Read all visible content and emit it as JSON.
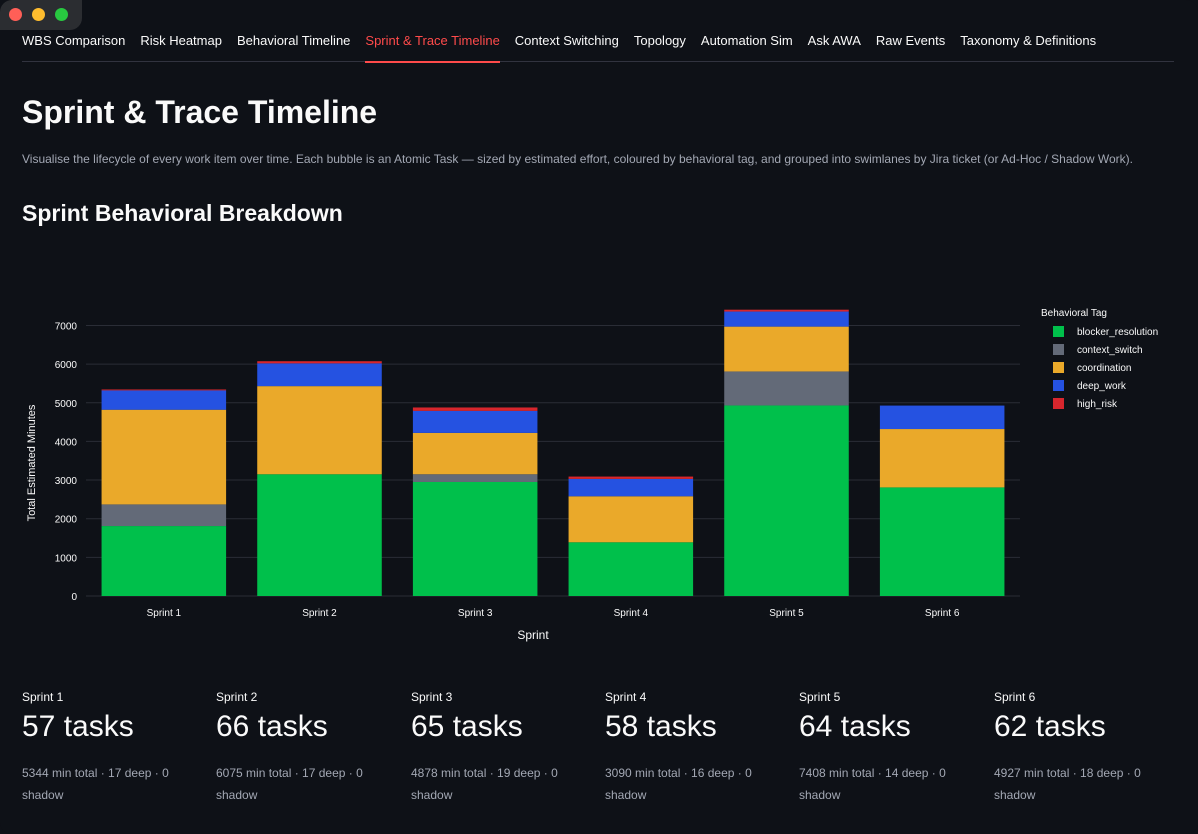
{
  "window": {
    "controls": [
      "close",
      "minimize",
      "maximize"
    ]
  },
  "tabs": [
    {
      "label": "WBS Comparison",
      "active": false
    },
    {
      "label": "Risk Heatmap",
      "active": false
    },
    {
      "label": "Behavioral Timeline",
      "active": false
    },
    {
      "label": "Sprint & Trace Timeline",
      "active": true
    },
    {
      "label": "Context Switching",
      "active": false
    },
    {
      "label": "Topology",
      "active": false
    },
    {
      "label": "Automation Sim",
      "active": false
    },
    {
      "label": "Ask AWA",
      "active": false
    },
    {
      "label": "Raw Events",
      "active": false
    },
    {
      "label": "Taxonomy & Definitions",
      "active": false
    }
  ],
  "page": {
    "title": "Sprint & Trace Timeline",
    "description": "Visualise the lifecycle of every work item over time. Each bubble is an Atomic Task — sized by estimated effort, coloured by behavioral tag, and grouped into swimlanes by Jira ticket (or Ad-Hoc / Shadow Work).",
    "section_title": "Sprint Behavioral Breakdown"
  },
  "chart_data": {
    "type": "bar",
    "stacked": true,
    "categories": [
      "Sprint 1",
      "Sprint 2",
      "Sprint 3",
      "Sprint 4",
      "Sprint 5",
      "Sprint 6"
    ],
    "series": [
      {
        "name": "blocker_resolution",
        "color": "#00c04b",
        "values": [
          1810,
          3150,
          2950,
          1390,
          4930,
          2810
        ]
      },
      {
        "name": "context_switch",
        "color": "#636a78",
        "values": [
          560,
          0,
          200,
          0,
          880,
          0
        ]
      },
      {
        "name": "coordination",
        "color": "#eaa92a",
        "values": [
          2450,
          2280,
          1070,
          1190,
          1160,
          1510
        ]
      },
      {
        "name": "deep_work",
        "color": "#2552e1",
        "values": [
          500,
          590,
          570,
          450,
          390,
          607
        ]
      },
      {
        "name": "high_risk",
        "color": "#d7262d",
        "values": [
          24,
          55,
          88,
          60,
          48,
          0
        ]
      }
    ],
    "xlabel": "Sprint",
    "ylabel": "Total Estimated Minutes",
    "ylim": [
      0,
      7400
    ],
    "yticks": [
      0,
      1000,
      2000,
      3000,
      4000,
      5000,
      6000,
      7000
    ],
    "legend_title": "Behavioral Tag",
    "legend_position": "right",
    "grid": true
  },
  "stats": [
    {
      "label": "Sprint 1",
      "value": "57 tasks",
      "detail": "5344 min total · 17 deep · 0 shadow"
    },
    {
      "label": "Sprint 2",
      "value": "66 tasks",
      "detail": "6075 min total · 17 deep · 0 shadow"
    },
    {
      "label": "Sprint 3",
      "value": "65 tasks",
      "detail": "4878 min total · 19 deep · 0 shadow"
    },
    {
      "label": "Sprint 4",
      "value": "58 tasks",
      "detail": "3090 min total · 16 deep · 0 shadow"
    },
    {
      "label": "Sprint 5",
      "value": "64 tasks",
      "detail": "7408 min total · 14 deep · 0 shadow"
    },
    {
      "label": "Sprint 6",
      "value": "62 tasks",
      "detail": "4927 min total · 18 deep · 0 shadow"
    }
  ]
}
